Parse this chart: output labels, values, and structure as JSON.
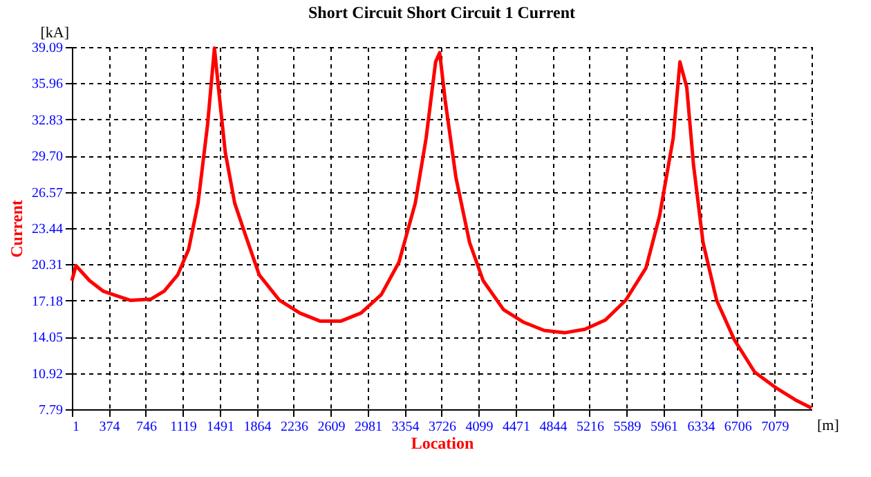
{
  "chart_data": {
    "type": "line",
    "title": "Short Circuit Short Circuit 1  Current",
    "xlabel": "Location",
    "ylabel": "Current",
    "annotations": [
      "[kA]",
      "[m]"
    ],
    "x": [
      1,
      42,
      179,
      315,
      452,
      589,
      794,
      931,
      1067,
      1177,
      1272,
      1368,
      1437,
      1477,
      1546,
      1641,
      1751,
      1888,
      2093,
      2298,
      2503,
      2708,
      2913,
      3118,
      3296,
      3460,
      3569,
      3665,
      3706,
      3761,
      3870,
      4007,
      4144,
      4349,
      4554,
      4759,
      4964,
      5169,
      5374,
      5579,
      5784,
      5921,
      6058,
      6126,
      6195,
      6263,
      6359,
      6496,
      6674,
      6879,
      7084,
      7289,
      7452
    ],
    "series": [
      {
        "color": "#ff0000",
        "values": [
          18.9,
          20.2,
          18.9,
          18.0,
          17.6,
          17.2,
          17.3,
          18.0,
          19.4,
          21.6,
          25.6,
          32.4,
          39.0,
          35.6,
          30.0,
          25.6,
          22.8,
          19.4,
          17.2,
          16.1,
          15.4,
          15.4,
          16.1,
          17.7,
          20.5,
          25.6,
          31.2,
          37.8,
          38.6,
          34.5,
          27.8,
          22.2,
          18.9,
          16.4,
          15.3,
          14.6,
          14.4,
          14.7,
          15.5,
          17.2,
          20.0,
          24.5,
          31.2,
          37.8,
          35.6,
          28.9,
          22.2,
          17.2,
          13.8,
          11.0,
          9.7,
          8.6,
          7.9
        ]
      }
    ],
    "xlim": [
      1,
      7452
    ],
    "xticks": [
      1,
      374,
      746,
      1119,
      1491,
      1864,
      2236,
      2609,
      2981,
      3354,
      3726,
      4099,
      4471,
      4844,
      5216,
      5589,
      5961,
      6334,
      6706,
      7079
    ],
    "ylim": [
      7.79,
      39.09
    ],
    "yticks": [
      7.79,
      10.92,
      14.05,
      17.18,
      20.31,
      23.44,
      26.57,
      {
        "value": 29.7,
        "label": "29.70"
      },
      32.83,
      35.96,
      39.09
    ],
    "grid": true,
    "marker": "none",
    "line_style": "solid"
  }
}
